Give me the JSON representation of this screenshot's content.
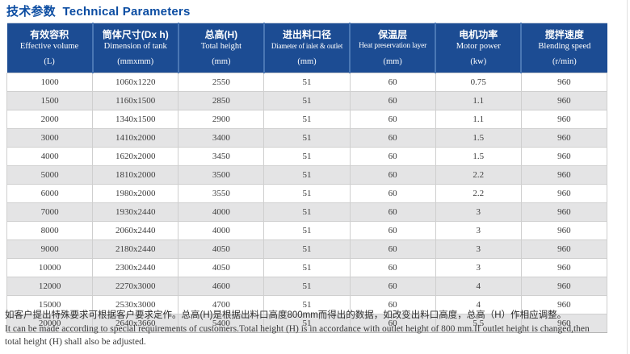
{
  "title": "技术参数  Technical Parameters",
  "table": {
    "columns": [
      {
        "cn": "有效容积",
        "en": "Effective volume",
        "unit": "(L)"
      },
      {
        "cn": "筒体尺寸(Dx h)",
        "en": "Dimension of tank",
        "unit": "(mmxmm)"
      },
      {
        "cn": "总高(H)",
        "en": "Total height",
        "unit": "(mm)"
      },
      {
        "cn": "进出料口径",
        "en": "Diameter of inlet & outlet",
        "unit": "(mm)"
      },
      {
        "cn": "保温层",
        "en": "Heat preservation layer",
        "unit": "(mm)"
      },
      {
        "cn": "电机功率",
        "en": "Motor power",
        "unit": "(kw)"
      },
      {
        "cn": "搅拌速度",
        "en": "Blending speed",
        "unit": "(r/min)"
      }
    ],
    "rows": [
      [
        "1000",
        "1060x1220",
        "2550",
        "51",
        "60",
        "0.75",
        "960"
      ],
      [
        "1500",
        "1160x1500",
        "2850",
        "51",
        "60",
        "1.1",
        "960"
      ],
      [
        "2000",
        "1340x1500",
        "2900",
        "51",
        "60",
        "1.1",
        "960"
      ],
      [
        "3000",
        "1410x2000",
        "3400",
        "51",
        "60",
        "1.5",
        "960"
      ],
      [
        "4000",
        "1620x2000",
        "3450",
        "51",
        "60",
        "1.5",
        "960"
      ],
      [
        "5000",
        "1810x2000",
        "3500",
        "51",
        "60",
        "2.2",
        "960"
      ],
      [
        "6000",
        "1980x2000",
        "3550",
        "51",
        "60",
        "2.2",
        "960"
      ],
      [
        "7000",
        "1930x2440",
        "4000",
        "51",
        "60",
        "3",
        "960"
      ],
      [
        "8000",
        "2060x2440",
        "4000",
        "51",
        "60",
        "3",
        "960"
      ],
      [
        "9000",
        "2180x2440",
        "4050",
        "51",
        "60",
        "3",
        "960"
      ],
      [
        "10000",
        "2300x2440",
        "4050",
        "51",
        "60",
        "3",
        "960"
      ],
      [
        "12000",
        "2270x3000",
        "4600",
        "51",
        "60",
        "4",
        "960"
      ],
      [
        "15000",
        "2530x3000",
        "4700",
        "51",
        "60",
        "4",
        "960"
      ],
      [
        "20000",
        "2640x3660",
        "5400",
        "51",
        "60",
        "5.5",
        "960"
      ]
    ]
  },
  "footer": {
    "cn": "如客户提出特殊要求可根据客户要求定作。总高(H)是根据出料口高度800mm而得出的数据，如改变出料口高度，总高（H）作相应调整。",
    "en_line1": "It can be made according to special requirements of customers.Total height (H) is in accordance with outlet height of 800 mm.If outlet height is changed,then",
    "en_line2": "total height (H) shall also be adjusted."
  },
  "colors": {
    "header_bg": "#1c4c93",
    "header_border": "#4a77b4",
    "title_text": "#0c4da2",
    "row_alt_bg": "#e4e4e5",
    "body_text": "#3c3c3c"
  }
}
